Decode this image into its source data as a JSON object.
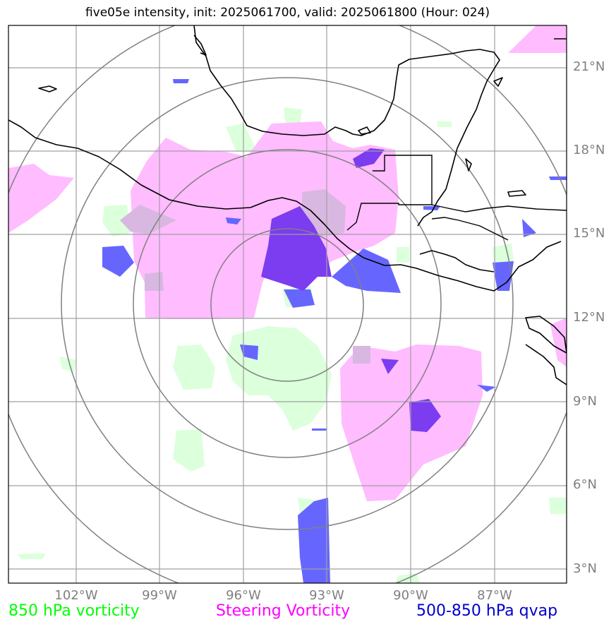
{
  "title": "five05e intensity, init: 2025061700, valid: 2025061800 (Hour: 024)",
  "map": {
    "lat_labels": [
      "21°N",
      "18°N",
      "15°N",
      "12°N",
      "9°N",
      "6°N",
      "3°N"
    ],
    "lon_labels": [
      "102°W",
      "99°W",
      "96°W",
      "93°W",
      "90°W",
      "87°W"
    ]
  },
  "legend": {
    "vort850": {
      "label": "850 hPa vorticity",
      "color": "#00ff00"
    },
    "steering": {
      "label": "Steering Vorticity",
      "color": "#ff00ff"
    },
    "qvap": {
      "label": "500-850 hPa qvap",
      "color": "#0000cc"
    }
  },
  "colors": {
    "green_fill": "#dcffdc",
    "pink_fill": "#ffbcff",
    "blue_fill": "#6666ff",
    "purple_fill": "#7c3cf0",
    "grid": "#a0a0a0",
    "rings": "#808080"
  }
}
